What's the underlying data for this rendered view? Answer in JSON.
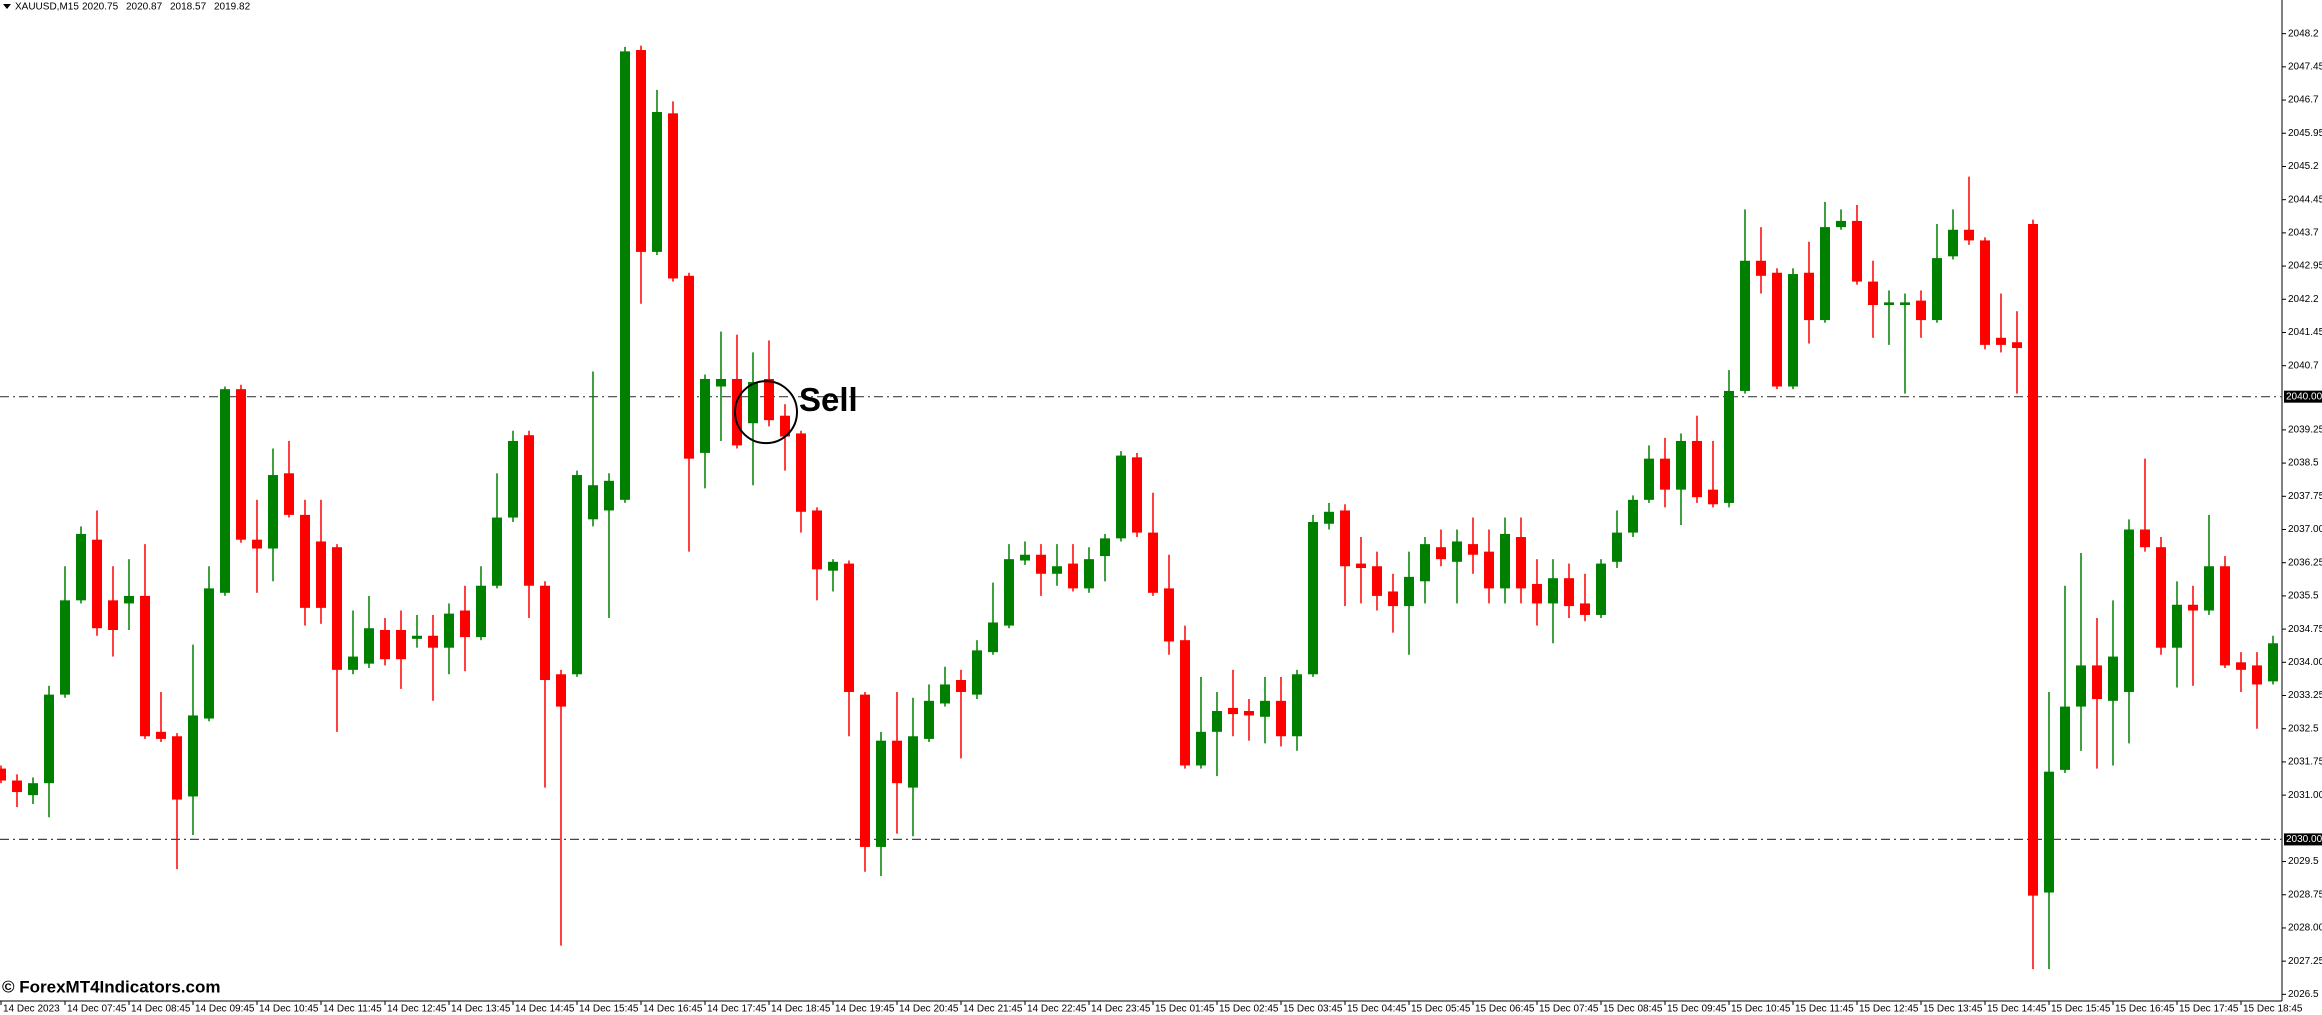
{
  "chart_data": {
    "type": "candlestick",
    "symbol": "XAUUSD,M15",
    "header_values": [
      2020.75,
      2020.87,
      2018.57,
      2019.82
    ],
    "watermark": "© ForexMT4Indicators.com",
    "annotation": "Sell",
    "up_color": "#008000",
    "down_color": "#ff0000",
    "ylim": [
      2026.35,
      2048.96
    ],
    "yticks": [
      2026.5,
      2027.25,
      {
        "value": 2028,
        "label": "2028.00"
      },
      2028.75,
      2029.5,
      {
        "value": 2031,
        "label": "2031.00"
      },
      2031.75,
      2032.5,
      2033.25,
      {
        "value": 2034,
        "label": "2034.00"
      },
      2034.75,
      2035.5,
      2036.25,
      {
        "value": 2037,
        "label": "2037.00"
      },
      2037.75,
      2038.5,
      2039.25,
      2040.7,
      2041.45,
      2042.2,
      2042.95,
      2043.7,
      2044.45,
      2045.2,
      2045.95,
      2046.7,
      2047.45,
      2048.2
    ],
    "levels": [
      {
        "value": 2040,
        "label": "2040.00"
      },
      {
        "value": 2030,
        "label": "2030.00"
      }
    ],
    "categories": [
      "14 Dec 2023",
      null,
      null,
      null,
      "14 Dec 07:45",
      null,
      null,
      null,
      "14 Dec 08:45",
      null,
      null,
      null,
      "14 Dec 09:45",
      null,
      null,
      null,
      "14 Dec 10:45",
      null,
      null,
      null,
      "14 Dec 11:45",
      null,
      null,
      null,
      "14 Dec 12:45",
      null,
      null,
      null,
      "14 Dec 13:45",
      null,
      null,
      null,
      "14 Dec 14:45",
      null,
      null,
      null,
      "14 Dec 15:45",
      null,
      null,
      null,
      "14 Dec 16:45",
      null,
      null,
      null,
      "14 Dec 17:45",
      null,
      null,
      null,
      "14 Dec 18:45",
      null,
      null,
      null,
      "14 Dec 19:45",
      null,
      null,
      null,
      "14 Dec 20:45",
      null,
      null,
      null,
      "14 Dec 21:45",
      null,
      null,
      null,
      "14 Dec 22:45",
      null,
      null,
      null,
      "14 Dec 23:45",
      null,
      null,
      null,
      "15 Dec 01:45",
      null,
      null,
      null,
      "15 Dec 02:45",
      null,
      null,
      null,
      "15 Dec 03:45",
      null,
      null,
      null,
      "15 Dec 04:45",
      null,
      null,
      null,
      "15 Dec 05:45",
      null,
      null,
      null,
      "15 Dec 06:45",
      null,
      null,
      null,
      "15 Dec 07:45",
      null,
      null,
      null,
      "15 Dec 08:45",
      null,
      null,
      null,
      "15 Dec 09:45",
      null,
      null,
      null,
      "15 Dec 10:45",
      null,
      null,
      null,
      "15 Dec 11:45",
      null,
      null,
      null,
      "15 Dec 12:45",
      null,
      null,
      null,
      "15 Dec 13:45",
      null,
      null,
      null,
      "15 Dec 14:45",
      null,
      null,
      null,
      "15 Dec 15:45",
      null,
      null,
      null,
      "15 Dec 16:45",
      null,
      null,
      null,
      "15 Dec 17:45",
      null,
      null,
      null,
      "15 Dec 18:45",
      null,
      null
    ],
    "open": [
      2031.6,
      2031.33,
      2031.0,
      2031.27,
      2033.27,
      2035.4,
      2036.77,
      2035.4,
      2035.33,
      2035.5,
      2032.43,
      2032.33,
      2030.97,
      2032.73,
      2035.57,
      2040.17,
      2036.77,
      2036.57,
      2038.27,
      2037.33,
      2036.73,
      2036.6,
      2033.83,
      2033.97,
      2034.73,
      2034.73,
      2034.53,
      2034.6,
      2034.33,
      2035.17,
      2034.57,
      2035.73,
      2037.27,
      2039.13,
      2035.73,
      2033.73,
      2033.73,
      2037.23,
      2037.43,
      2037.67,
      2047.83,
      2043.27,
      2046.4,
      2042.73,
      2038.73,
      2040.23,
      2040.4,
      2039.4,
      2040.4,
      2039.57,
      2039.17,
      2037.43,
      2036.07,
      2036.23,
      2033.27,
      2029.83,
      2032.23,
      2031.17,
      2032.27,
      2033.07,
      2033.6,
      2033.27,
      2034.23,
      2034.83,
      2036.3,
      2036.43,
      2036.0,
      2036.23,
      2035.67,
      2036.4,
      2036.8,
      2038.63,
      2036.93,
      2035.67,
      2034.5,
      2031.67,
      2032.43,
      2032.97,
      2032.9,
      2032.77,
      2033.13,
      2032.33,
      2033.73,
      2037.13,
      2037.43,
      2036.23,
      2036.17,
      2035.6,
      2035.27,
      2035.83,
      2036.6,
      2036.27,
      2036.67,
      2036.5,
      2035.67,
      2036.83,
      2035.77,
      2035.33,
      2035.9,
      2035.33,
      2035.07,
      2036.27,
      2036.93,
      2037.67,
      2038.6,
      2037.9,
      2039.0,
      2037.9,
      2037.6,
      2040.13,
      2043.07,
      2042.8,
      2040.23,
      2042.8,
      2041.73,
      2043.83,
      2043.97,
      2042.6,
      2042.07,
      2042.07,
      2042.17,
      2041.73,
      2043.17,
      2043.77,
      2043.53,
      2041.33,
      2041.23,
      2043.9,
      2028.8,
      2031.57,
      2033.0,
      2033.93,
      2033.13,
      2033.33,
      2037.0,
      2036.6,
      2034.33,
      2035.3,
      2035.17,
      2036.17,
      2034.0,
      2033.93,
      2033.57
    ],
    "high": [
      2031.67,
      2031.47,
      2031.4,
      2033.47,
      2036.17,
      2037.07,
      2037.43,
      2036.17,
      2036.33,
      2036.67,
      2033.33,
      2032.4,
      2034.4,
      2036.17,
      2040.23,
      2040.27,
      2037.67,
      2038.83,
      2039.0,
      2037.67,
      2037.67,
      2036.67,
      2035.17,
      2035.5,
      2035.0,
      2035.17,
      2035.07,
      2035.07,
      2035.33,
      2035.73,
      2036.17,
      2038.27,
      2039.23,
      2039.23,
      2035.83,
      2033.83,
      2038.33,
      2040.57,
      2038.27,
      2047.9,
      2047.93,
      2046.93,
      2046.67,
      2042.8,
      2040.5,
      2041.47,
      2041.4,
      2041.0,
      2041.27,
      2039.83,
      2039.23,
      2037.5,
      2036.33,
      2036.3,
      2033.33,
      2032.43,
      2033.33,
      2033.2,
      2033.5,
      2033.9,
      2033.83,
      2034.5,
      2035.8,
      2036.67,
      2036.73,
      2036.67,
      2036.67,
      2036.67,
      2036.6,
      2036.9,
      2038.77,
      2038.73,
      2037.83,
      2036.43,
      2034.83,
      2033.67,
      2033.33,
      2033.83,
      2033.17,
      2033.67,
      2033.67,
      2033.83,
      2037.33,
      2037.6,
      2037.57,
      2036.83,
      2036.5,
      2036.0,
      2036.5,
      2036.83,
      2037.0,
      2037.0,
      2037.27,
      2037.0,
      2037.27,
      2037.27,
      2036.33,
      2036.33,
      2036.23,
      2036.0,
      2036.33,
      2037.43,
      2037.77,
      2038.9,
      2039.07,
      2039.17,
      2039.57,
      2039.0,
      2040.6,
      2044.23,
      2043.83,
      2042.9,
      2042.9,
      2043.5,
      2044.4,
      2044.23,
      2044.33,
      2043.07,
      2042.4,
      2042.33,
      2042.4,
      2043.9,
      2044.23,
      2044.97,
      2043.6,
      2042.33,
      2041.93,
      2044.0,
      2033.33,
      2035.73,
      2036.47,
      2035.0,
      2035.4,
      2037.23,
      2038.6,
      2036.83,
      2035.83,
      2035.73,
      2037.33,
      2036.4,
      2034.23,
      2034.23,
      2034.6
    ],
    "low": [
      2031.27,
      2030.73,
      2030.8,
      2030.5,
      2033.2,
      2035.33,
      2034.6,
      2034.13,
      2034.73,
      2032.27,
      2032.2,
      2029.33,
      2030.1,
      2032.67,
      2035.5,
      2036.7,
      2035.57,
      2035.83,
      2037.27,
      2034.83,
      2034.87,
      2032.43,
      2033.73,
      2033.87,
      2033.93,
      2033.4,
      2034.33,
      2033.13,
      2033.73,
      2033.8,
      2034.5,
      2035.67,
      2037.17,
      2035.0,
      2031.17,
      2027.6,
      2033.67,
      2037.07,
      2035.0,
      2037.6,
      2042.1,
      2043.2,
      2042.6,
      2036.5,
      2037.93,
      2039.0,
      2038.83,
      2038.0,
      2039.33,
      2038.33,
      2036.93,
      2035.4,
      2035.6,
      2032.33,
      2029.27,
      2029.17,
      2030.13,
      2030.07,
      2032.2,
      2033.0,
      2031.83,
      2033.17,
      2034.17,
      2034.77,
      2036.2,
      2035.5,
      2035.73,
      2035.6,
      2035.57,
      2035.83,
      2036.73,
      2036.83,
      2035.5,
      2034.17,
      2031.6,
      2031.6,
      2031.43,
      2032.33,
      2032.23,
      2032.17,
      2032.1,
      2032.0,
      2033.67,
      2037.0,
      2035.27,
      2035.33,
      2035.17,
      2034.67,
      2034.17,
      2035.33,
      2036.17,
      2035.33,
      2036.0,
      2035.33,
      2035.33,
      2035.33,
      2034.83,
      2034.43,
      2035.0,
      2034.93,
      2035.0,
      2036.13,
      2036.83,
      2037.6,
      2037.5,
      2037.1,
      2037.6,
      2037.5,
      2037.5,
      2040.07,
      2042.33,
      2040.17,
      2040.17,
      2041.2,
      2041.67,
      2043.77,
      2042.53,
      2041.33,
      2041.17,
      2040.07,
      2041.33,
      2041.67,
      2043.1,
      2043.43,
      2041.07,
      2041.0,
      2040.07,
      2027.07,
      2027.07,
      2031.5,
      2032.0,
      2031.6,
      2031.67,
      2032.17,
      2036.5,
      2034.17,
      2033.43,
      2033.47,
      2035.07,
      2033.87,
      2033.33,
      2032.5,
      2033.5
    ],
    "close": [
      2031.33,
      2031.07,
      2031.27,
      2033.27,
      2035.4,
      2036.9,
      2034.77,
      2034.73,
      2035.5,
      2032.33,
      2032.27,
      2030.9,
      2032.8,
      2035.67,
      2040.17,
      2036.77,
      2036.57,
      2038.23,
      2037.33,
      2035.23,
      2035.23,
      2033.83,
      2034.13,
      2034.77,
      2034.07,
      2034.07,
      2034.6,
      2034.33,
      2035.1,
      2034.57,
      2035.73,
      2037.27,
      2039.0,
      2035.73,
      2033.6,
      2033.0,
      2038.23,
      2038.0,
      2038.1,
      2047.8,
      2043.27,
      2046.43,
      2042.67,
      2038.6,
      2040.4,
      2040.4,
      2038.9,
      2040.33,
      2039.47,
      2039.1,
      2037.4,
      2036.1,
      2036.27,
      2033.33,
      2029.83,
      2032.23,
      2031.27,
      2032.33,
      2033.13,
      2033.5,
      2033.33,
      2034.27,
      2034.9,
      2036.33,
      2036.43,
      2036.0,
      2036.17,
      2035.67,
      2036.33,
      2036.8,
      2038.67,
      2036.93,
      2035.57,
      2034.47,
      2031.67,
      2032.43,
      2032.9,
      2032.83,
      2032.8,
      2033.13,
      2032.33,
      2033.73,
      2037.17,
      2037.4,
      2036.17,
      2036.13,
      2035.5,
      2035.27,
      2035.93,
      2036.67,
      2036.33,
      2036.73,
      2036.43,
      2035.67,
      2036.9,
      2035.67,
      2035.33,
      2035.9,
      2035.27,
      2035.07,
      2036.23,
      2036.93,
      2037.67,
      2038.6,
      2037.9,
      2039.0,
      2037.73,
      2037.57,
      2040.13,
      2043.07,
      2042.73,
      2040.23,
      2042.77,
      2041.73,
      2043.83,
      2043.97,
      2042.6,
      2042.07,
      2042.13,
      2042.13,
      2041.73,
      2043.13,
      2043.77,
      2043.53,
      2041.17,
      2041.17,
      2041.1,
      2028.73,
      2031.53,
      2033.0,
      2033.93,
      2033.17,
      2034.13,
      2037.0,
      2036.6,
      2034.33,
      2035.3,
      2035.17,
      2036.17,
      2033.93,
      2033.83,
      2033.5,
      2034.43
    ]
  }
}
